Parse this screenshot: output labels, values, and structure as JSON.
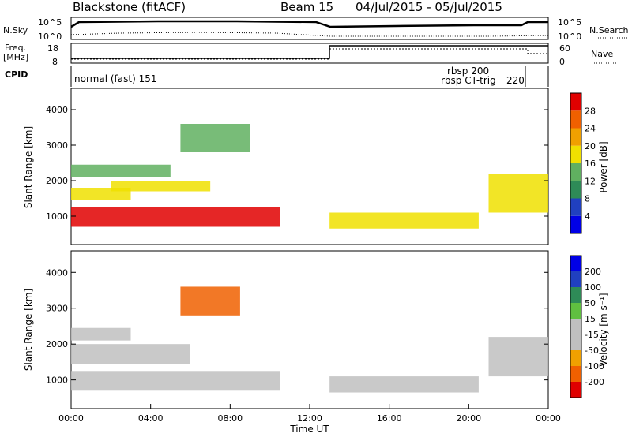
{
  "header": {
    "station": "Blackstone (fitACF)",
    "beam": "Beam 15",
    "dates": "04/Jul/2015 - 05/Jul/2015"
  },
  "top_panel": {
    "left_label": "N.Sky",
    "right_label": "N.Search",
    "tick_high": "10^5",
    "tick_low": "10^0"
  },
  "freq_panel": {
    "left_label_1": "Freq.",
    "left_label_2": "[MHz]",
    "right_label": "Nave",
    "left_ticks": [
      "18",
      "8"
    ],
    "right_ticks": [
      "60",
      "0"
    ]
  },
  "cpid": {
    "label": "CPID",
    "segments": [
      {
        "name": "normal (fast) 151",
        "start_hour": 0
      },
      {
        "name": "rbsp 200",
        "start_hour": 20.9
      },
      {
        "name": "rbsp CT-trig",
        "start_hour": 20.9
      },
      {
        "name": "220",
        "start_hour": 22.5
      }
    ]
  },
  "chart_data": [
    {
      "type": "heatmap",
      "name": "power",
      "ylabel": "Slant Range [km]",
      "yticks": [
        "1000",
        "2000",
        "3000",
        "4000"
      ],
      "ylim": [
        200,
        4600
      ],
      "colorbar_label": "Power [dB]",
      "colorbar_ticks": [
        "28",
        "24",
        "20",
        "16",
        "12",
        "8",
        "4"
      ],
      "colorbar_range": [
        0,
        32
      ],
      "colorscale": [
        "#0000e6",
        "#2040c0",
        "#2e8b57",
        "#60b060",
        "#f0e000",
        "#f0a000",
        "#f06000",
        "#e00000"
      ],
      "bands": [
        {
          "t0": 0,
          "t1": 10.5,
          "r0": 700,
          "r1": 1250,
          "level": 28
        },
        {
          "t0": 0,
          "t1": 3,
          "r0": 1450,
          "r1": 1800,
          "level": 18
        },
        {
          "t0": 2,
          "t1": 7,
          "r0": 1700,
          "r1": 2000,
          "level": 18
        },
        {
          "t0": 0,
          "t1": 5,
          "r0": 2100,
          "r1": 2450,
          "level": 12
        },
        {
          "t0": 5.5,
          "t1": 9,
          "r0": 2800,
          "r1": 3600,
          "level": 14
        },
        {
          "t0": 13,
          "t1": 20.5,
          "r0": 650,
          "r1": 1100,
          "level": 18
        },
        {
          "t0": 21,
          "t1": 24,
          "r0": 1100,
          "r1": 2200,
          "level": 16
        }
      ]
    },
    {
      "type": "heatmap",
      "name": "velocity",
      "ylabel": "Slant Range [km]",
      "yticks": [
        "1000",
        "2000",
        "3000",
        "4000"
      ],
      "ylim": [
        200,
        4600
      ],
      "xlabel": "Time UT",
      "xticks": [
        "00:00",
        "04:00",
        "08:00",
        "12:00",
        "16:00",
        "20:00",
        "00:00"
      ],
      "colorbar_label": "Velocity [m s⁻¹]",
      "colorbar_ticks": [
        "200",
        "100",
        "50",
        "15",
        "-15",
        "-50",
        "-100",
        "-200"
      ],
      "colorbar_range": [
        -250,
        250
      ],
      "colorscale": [
        "#e00000",
        "#f06000",
        "#f0a000",
        "#c0c0c0",
        "#c0c0c0",
        "#60c040",
        "#2e8b57",
        "#2040c0",
        "#0000e6"
      ],
      "bands": [
        {
          "t0": 0,
          "t1": 10.5,
          "r0": 700,
          "r1": 1250,
          "level": 0
        },
        {
          "t0": 0,
          "t1": 6,
          "r0": 1450,
          "r1": 2000,
          "level": 0
        },
        {
          "t0": 0,
          "t1": 3,
          "r0": 2100,
          "r1": 2450,
          "level": -60
        },
        {
          "t0": 5.5,
          "t1": 8.5,
          "r0": 2800,
          "r1": 3600,
          "level": -150
        },
        {
          "t0": 13,
          "t1": 20.5,
          "r0": 650,
          "r1": 1100,
          "level": 0
        },
        {
          "t0": 21,
          "t1": 24,
          "r0": 1100,
          "r1": 2200,
          "level": 0
        }
      ]
    }
  ]
}
